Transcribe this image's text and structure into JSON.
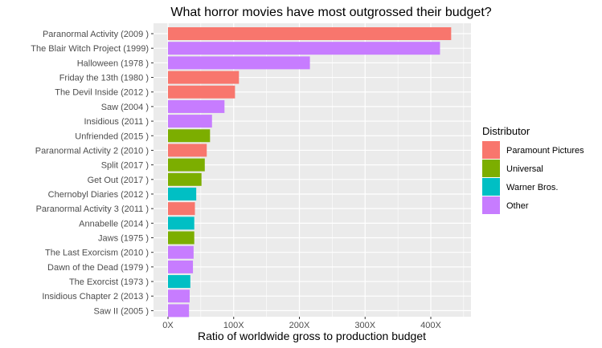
{
  "chart_data": {
    "type": "bar",
    "orientation": "horizontal",
    "title": "What horror movies have most outgrossed their budget?",
    "xlabel": "Ratio of worldwide gross to production budget",
    "ylabel": "",
    "xlim": [
      0,
      450
    ],
    "x_ticks": [
      0,
      100,
      200,
      300,
      400
    ],
    "x_tick_labels": [
      "0X",
      "100X",
      "200X",
      "300X",
      "400X"
    ],
    "grid": true,
    "legend": {
      "title": "Distributor",
      "position": "right",
      "entries": [
        {
          "name": "Paramount Pictures",
          "color": "#F8766D"
        },
        {
          "name": "Universal",
          "color": "#7CAE00"
        },
        {
          "name": "Warner Bros.",
          "color": "#00BFC4"
        },
        {
          "name": "Other",
          "color": "#C77CFF"
        }
      ]
    },
    "bars": [
      {
        "label": "Paranormal Activity (2009 )",
        "value": 431,
        "distributor": "Paramount Pictures"
      },
      {
        "label": "The Blair Witch Project (1999)",
        "value": 414,
        "distributor": "Other"
      },
      {
        "label": "Halloween (1978 )",
        "value": 216,
        "distributor": "Other"
      },
      {
        "label": "Friday the 13th (1980 )",
        "value": 108,
        "distributor": "Paramount Pictures"
      },
      {
        "label": "The Devil Inside (2012 )",
        "value": 102,
        "distributor": "Paramount Pictures"
      },
      {
        "label": "Saw (2004 )",
        "value": 86,
        "distributor": "Other"
      },
      {
        "label": "Insidious (2011 )",
        "value": 67,
        "distributor": "Other"
      },
      {
        "label": "Unfriended (2015 )",
        "value": 64,
        "distributor": "Universal"
      },
      {
        "label": "Paranormal Activity 2 (2010 )",
        "value": 59,
        "distributor": "Paramount Pictures"
      },
      {
        "label": "Split (2017 )",
        "value": 56,
        "distributor": "Universal"
      },
      {
        "label": "Get Out (2017 )",
        "value": 51,
        "distributor": "Universal"
      },
      {
        "label": "Chernobyl Diaries (2012 )",
        "value": 43,
        "distributor": "Warner Bros."
      },
      {
        "label": "Paranormal Activity 3 (2011 )",
        "value": 41,
        "distributor": "Paramount Pictures"
      },
      {
        "label": "Annabelle (2014 )",
        "value": 40,
        "distributor": "Warner Bros."
      },
      {
        "label": "Jaws (1975 )",
        "value": 40,
        "distributor": "Universal"
      },
      {
        "label": "The Last Exorcism (2010 )",
        "value": 39,
        "distributor": "Other"
      },
      {
        "label": "Dawn of the Dead (1979 )",
        "value": 38,
        "distributor": "Other"
      },
      {
        "label": "The Exorcist (1973 )",
        "value": 34,
        "distributor": "Warner Bros."
      },
      {
        "label": "Insidious Chapter 2 (2013 )",
        "value": 33,
        "distributor": "Other"
      },
      {
        "label": "Saw II (2005 )",
        "value": 32,
        "distributor": "Other"
      }
    ]
  }
}
